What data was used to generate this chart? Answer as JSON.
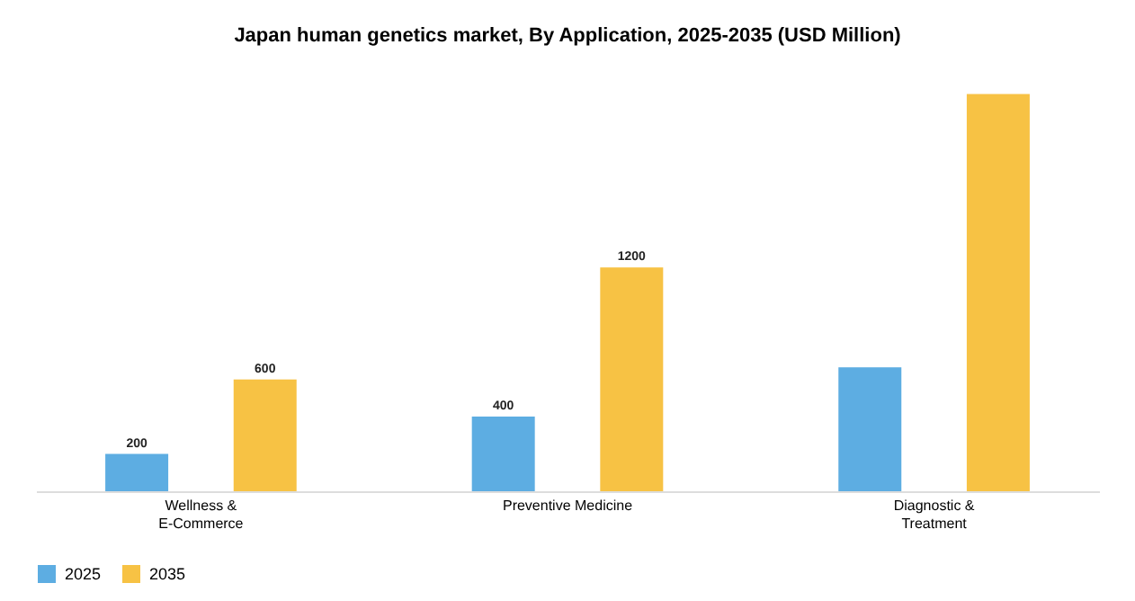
{
  "chart_data": {
    "type": "bar",
    "title": "Japan human genetics market, By Application, 2025-2035 (USD Million)",
    "categories": [
      "Wellness & E-Commerce",
      "Preventive Medicine",
      "Diagnostic & Treatment"
    ],
    "series": [
      {
        "name": "2025",
        "color": "#5dade2",
        "values": [
          200,
          400,
          665
        ],
        "value_labels": [
          "200",
          "400",
          null
        ]
      },
      {
        "name": "2035",
        "color": "#f7c244",
        "values": [
          600,
          1200,
          2130
        ],
        "value_labels": [
          "600",
          "1200",
          null
        ]
      }
    ],
    "legend": "bottom",
    "grid": false
  }
}
